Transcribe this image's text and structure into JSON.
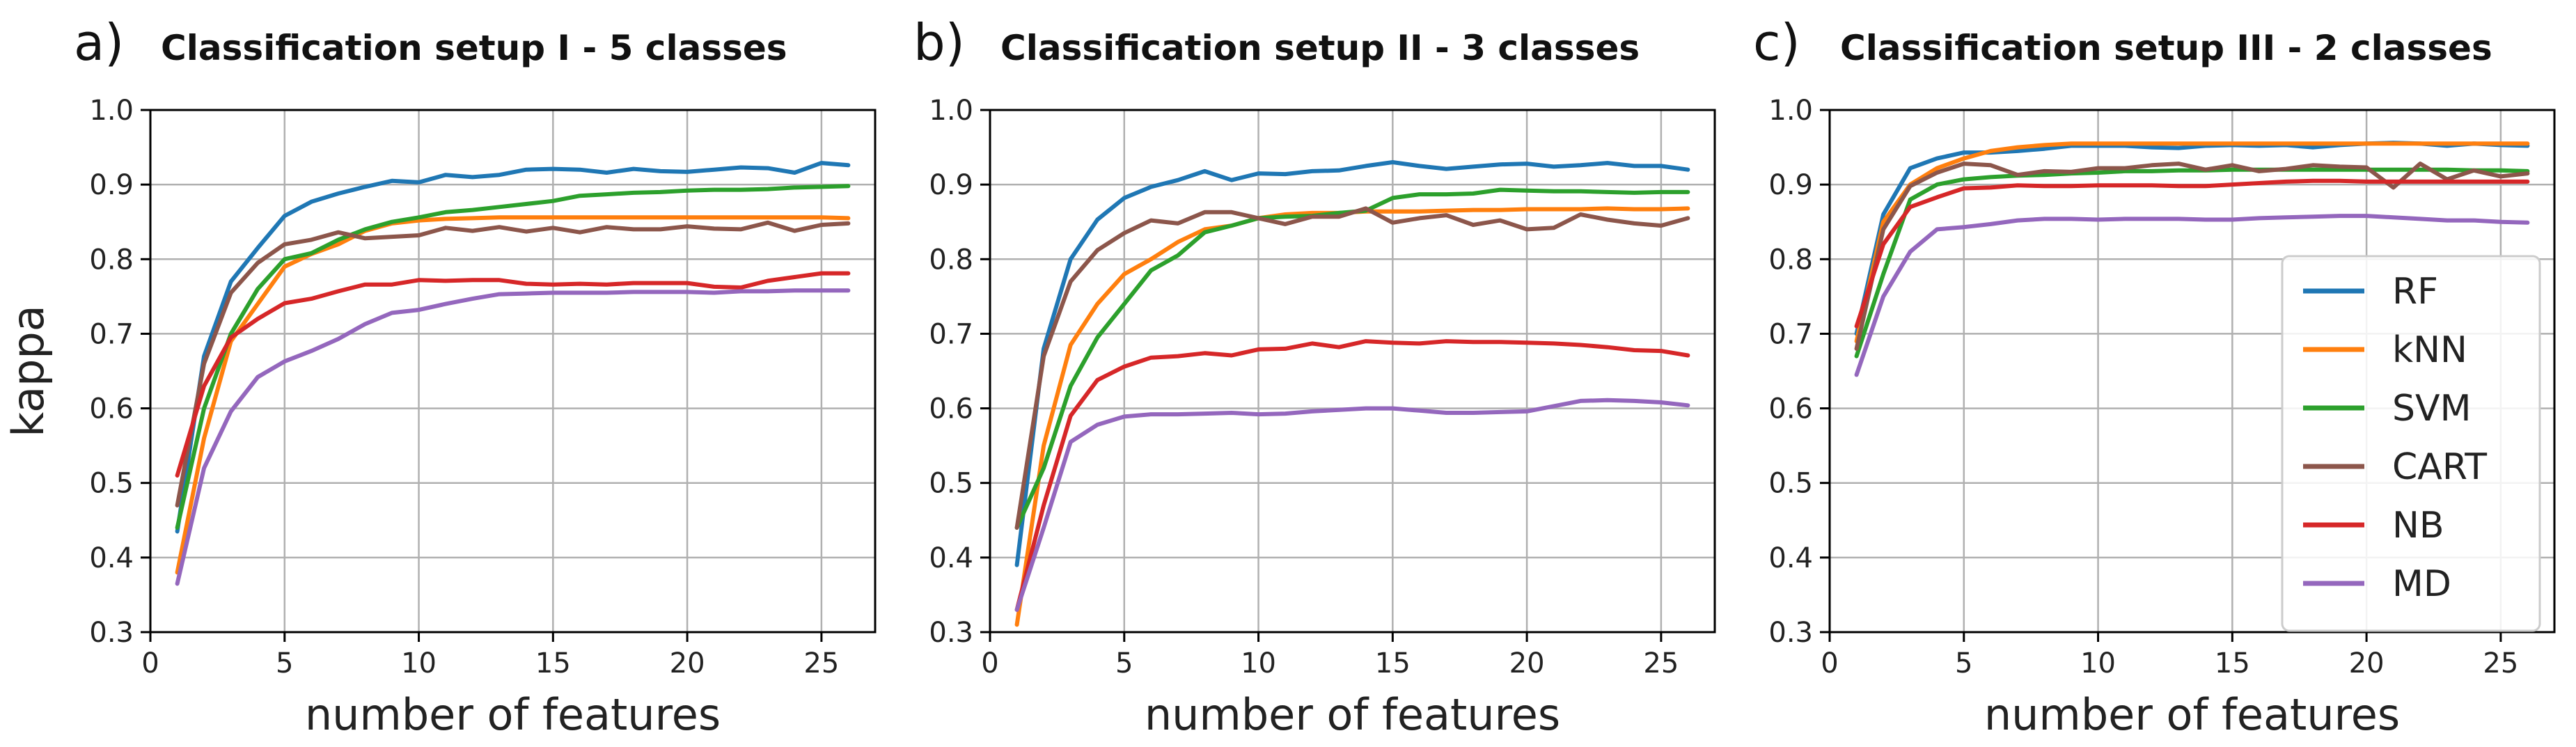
{
  "chart_data": [
    {
      "type": "line",
      "panel_letter": "a)",
      "title": "Classification setup I - 5 classes",
      "xlabel": "number of features",
      "ylabel": "kappa",
      "xlim": [
        0,
        27
      ],
      "ylim": [
        0.3,
        1.0
      ],
      "xticks": [
        "0",
        "5",
        "10",
        "15",
        "20",
        "25"
      ],
      "yticks": [
        "0.3",
        "0.4",
        "0.5",
        "0.6",
        "0.7",
        "0.8",
        "0.9",
        "1.0"
      ],
      "grid": true,
      "legend": false,
      "x": [
        1,
        2,
        3,
        4,
        5,
        6,
        7,
        8,
        9,
        10,
        11,
        12,
        13,
        14,
        15,
        16,
        17,
        18,
        19,
        20,
        21,
        22,
        23,
        24,
        25,
        26
      ],
      "series": [
        {
          "name": "RF",
          "color": "#1f77b4",
          "values": [
            0.435,
            0.67,
            0.77,
            0.815,
            0.858,
            0.877,
            0.888,
            0.897,
            0.905,
            0.903,
            0.913,
            0.91,
            0.913,
            0.92,
            0.921,
            0.92,
            0.916,
            0.921,
            0.918,
            0.917,
            0.92,
            0.923,
            0.922,
            0.916,
            0.929,
            0.926
          ]
        },
        {
          "name": "kNN",
          "color": "#ff7f0e",
          "values": [
            0.38,
            0.56,
            0.69,
            0.74,
            0.79,
            0.807,
            0.82,
            0.838,
            0.848,
            0.852,
            0.854,
            0.855,
            0.856,
            0.856,
            0.856,
            0.856,
            0.856,
            0.856,
            0.856,
            0.856,
            0.856,
            0.856,
            0.856,
            0.856,
            0.856,
            0.855
          ]
        },
        {
          "name": "SVM",
          "color": "#2ca02c",
          "values": [
            0.44,
            0.6,
            0.7,
            0.76,
            0.8,
            0.808,
            0.826,
            0.84,
            0.85,
            0.856,
            0.863,
            0.866,
            0.87,
            0.874,
            0.878,
            0.885,
            0.887,
            0.889,
            0.89,
            0.892,
            0.893,
            0.893,
            0.894,
            0.896,
            0.897,
            0.898
          ]
        },
        {
          "name": "CART",
          "color": "#8c564b",
          "values": [
            0.47,
            0.66,
            0.755,
            0.795,
            0.82,
            0.826,
            0.836,
            0.828,
            0.83,
            0.832,
            0.842,
            0.838,
            0.843,
            0.837,
            0.842,
            0.836,
            0.843,
            0.84,
            0.84,
            0.844,
            0.841,
            0.84,
            0.849,
            0.838,
            0.846,
            0.848
          ]
        },
        {
          "name": "NB",
          "color": "#d62728",
          "values": [
            0.51,
            0.63,
            0.695,
            0.72,
            0.741,
            0.747,
            0.757,
            0.766,
            0.766,
            0.772,
            0.771,
            0.772,
            0.772,
            0.767,
            0.766,
            0.767,
            0.766,
            0.768,
            0.768,
            0.768,
            0.763,
            0.762,
            0.771,
            0.776,
            0.781,
            0.781
          ]
        },
        {
          "name": "MD",
          "color": "#9467bd",
          "values": [
            0.365,
            0.52,
            0.596,
            0.642,
            0.663,
            0.677,
            0.693,
            0.713,
            0.728,
            0.732,
            0.74,
            0.747,
            0.753,
            0.754,
            0.755,
            0.755,
            0.755,
            0.756,
            0.756,
            0.756,
            0.755,
            0.757,
            0.757,
            0.758,
            0.758,
            0.758
          ]
        }
      ]
    },
    {
      "type": "line",
      "panel_letter": "b)",
      "title": "Classification setup II - 3 classes",
      "xlabel": "number of features",
      "ylabel": "",
      "xlim": [
        0,
        27
      ],
      "ylim": [
        0.3,
        1.0
      ],
      "xticks": [
        "0",
        "5",
        "10",
        "15",
        "20",
        "25"
      ],
      "yticks": [
        "0.3",
        "0.4",
        "0.5",
        "0.6",
        "0.7",
        "0.8",
        "0.9",
        "1.0"
      ],
      "grid": true,
      "legend": false,
      "x": [
        1,
        2,
        3,
        4,
        5,
        6,
        7,
        8,
        9,
        10,
        11,
        12,
        13,
        14,
        15,
        16,
        17,
        18,
        19,
        20,
        21,
        22,
        23,
        24,
        25,
        26
      ],
      "series": [
        {
          "name": "RF",
          "color": "#1f77b4",
          "values": [
            0.39,
            0.68,
            0.8,
            0.853,
            0.882,
            0.897,
            0.906,
            0.918,
            0.906,
            0.915,
            0.914,
            0.918,
            0.919,
            0.925,
            0.93,
            0.925,
            0.921,
            0.924,
            0.927,
            0.928,
            0.924,
            0.926,
            0.929,
            0.925,
            0.925,
            0.92
          ]
        },
        {
          "name": "kNN",
          "color": "#ff7f0e",
          "values": [
            0.31,
            0.55,
            0.685,
            0.74,
            0.78,
            0.8,
            0.823,
            0.84,
            0.845,
            0.855,
            0.86,
            0.862,
            0.862,
            0.864,
            0.864,
            0.864,
            0.865,
            0.866,
            0.866,
            0.867,
            0.867,
            0.867,
            0.868,
            0.867,
            0.867,
            0.868
          ]
        },
        {
          "name": "SVM",
          "color": "#2ca02c",
          "values": [
            0.44,
            0.52,
            0.63,
            0.695,
            0.74,
            0.785,
            0.805,
            0.836,
            0.845,
            0.855,
            0.857,
            0.858,
            0.862,
            0.865,
            0.882,
            0.887,
            0.887,
            0.888,
            0.893,
            0.892,
            0.891,
            0.891,
            0.89,
            0.889,
            0.89,
            0.89
          ]
        },
        {
          "name": "CART",
          "color": "#8c564b",
          "values": [
            0.44,
            0.67,
            0.77,
            0.812,
            0.835,
            0.852,
            0.848,
            0.863,
            0.863,
            0.855,
            0.847,
            0.857,
            0.857,
            0.868,
            0.849,
            0.855,
            0.859,
            0.846,
            0.852,
            0.84,
            0.842,
            0.86,
            0.853,
            0.848,
            0.845,
            0.855
          ]
        },
        {
          "name": "NB",
          "color": "#d62728",
          "values": [
            0.33,
            0.47,
            0.59,
            0.638,
            0.656,
            0.668,
            0.67,
            0.674,
            0.671,
            0.679,
            0.68,
            0.687,
            0.682,
            0.69,
            0.688,
            0.687,
            0.69,
            0.689,
            0.689,
            0.688,
            0.687,
            0.685,
            0.682,
            0.678,
            0.677,
            0.671
          ]
        },
        {
          "name": "MD",
          "color": "#9467bd",
          "values": [
            0.33,
            0.44,
            0.555,
            0.578,
            0.589,
            0.592,
            0.592,
            0.593,
            0.594,
            0.592,
            0.593,
            0.596,
            0.598,
            0.6,
            0.6,
            0.597,
            0.594,
            0.594,
            0.595,
            0.596,
            0.603,
            0.61,
            0.611,
            0.61,
            0.608,
            0.604
          ]
        }
      ]
    },
    {
      "type": "line",
      "panel_letter": "c)",
      "title": "Classification setup III - 2 classes",
      "xlabel": "number of features",
      "ylabel": "",
      "xlim": [
        0,
        27
      ],
      "ylim": [
        0.3,
        1.0
      ],
      "xticks": [
        "0",
        "5",
        "10",
        "15",
        "20",
        "25"
      ],
      "yticks": [
        "0.3",
        "0.4",
        "0.5",
        "0.6",
        "0.7",
        "0.8",
        "0.9",
        "1.0"
      ],
      "grid": true,
      "legend": true,
      "legend_position": "right",
      "x": [
        1,
        2,
        3,
        4,
        5,
        6,
        7,
        8,
        9,
        10,
        11,
        12,
        13,
        14,
        15,
        16,
        17,
        18,
        19,
        20,
        21,
        22,
        23,
        24,
        25,
        26
      ],
      "series": [
        {
          "name": "RF",
          "color": "#1f77b4",
          "values": [
            0.7,
            0.86,
            0.922,
            0.935,
            0.943,
            0.943,
            0.945,
            0.948,
            0.952,
            0.952,
            0.952,
            0.95,
            0.949,
            0.952,
            0.953,
            0.952,
            0.953,
            0.95,
            0.953,
            0.955,
            0.956,
            0.955,
            0.952,
            0.955,
            0.953,
            0.952
          ]
        },
        {
          "name": "kNN",
          "color": "#ff7f0e",
          "values": [
            0.69,
            0.85,
            0.9,
            0.922,
            0.935,
            0.945,
            0.95,
            0.953,
            0.955,
            0.955,
            0.955,
            0.955,
            0.955,
            0.955,
            0.955,
            0.955,
            0.955,
            0.955,
            0.955,
            0.955,
            0.955,
            0.955,
            0.955,
            0.955,
            0.955,
            0.955
          ]
        },
        {
          "name": "SVM",
          "color": "#2ca02c",
          "values": [
            0.67,
            0.78,
            0.88,
            0.9,
            0.907,
            0.91,
            0.912,
            0.913,
            0.915,
            0.916,
            0.918,
            0.918,
            0.919,
            0.919,
            0.92,
            0.92,
            0.92,
            0.92,
            0.92,
            0.92,
            0.92,
            0.92,
            0.92,
            0.919,
            0.919,
            0.918
          ]
        },
        {
          "name": "CART",
          "color": "#8c564b",
          "values": [
            0.68,
            0.84,
            0.898,
            0.916,
            0.928,
            0.926,
            0.913,
            0.918,
            0.917,
            0.922,
            0.922,
            0.926,
            0.928,
            0.92,
            0.926,
            0.918,
            0.921,
            0.926,
            0.924,
            0.923,
            0.896,
            0.928,
            0.907,
            0.919,
            0.911,
            0.915
          ]
        },
        {
          "name": "NB",
          "color": "#d62728",
          "values": [
            0.71,
            0.82,
            0.87,
            0.883,
            0.895,
            0.896,
            0.899,
            0.898,
            0.898,
            0.899,
            0.899,
            0.899,
            0.898,
            0.898,
            0.9,
            0.902,
            0.904,
            0.905,
            0.905,
            0.904,
            0.904,
            0.904,
            0.904,
            0.904,
            0.904,
            0.904
          ]
        },
        {
          "name": "MD",
          "color": "#9467bd",
          "values": [
            0.645,
            0.75,
            0.81,
            0.84,
            0.843,
            0.847,
            0.852,
            0.854,
            0.854,
            0.853,
            0.854,
            0.854,
            0.854,
            0.853,
            0.853,
            0.855,
            0.856,
            0.857,
            0.858,
            0.858,
            0.856,
            0.854,
            0.852,
            0.852,
            0.85,
            0.849
          ]
        }
      ]
    }
  ]
}
